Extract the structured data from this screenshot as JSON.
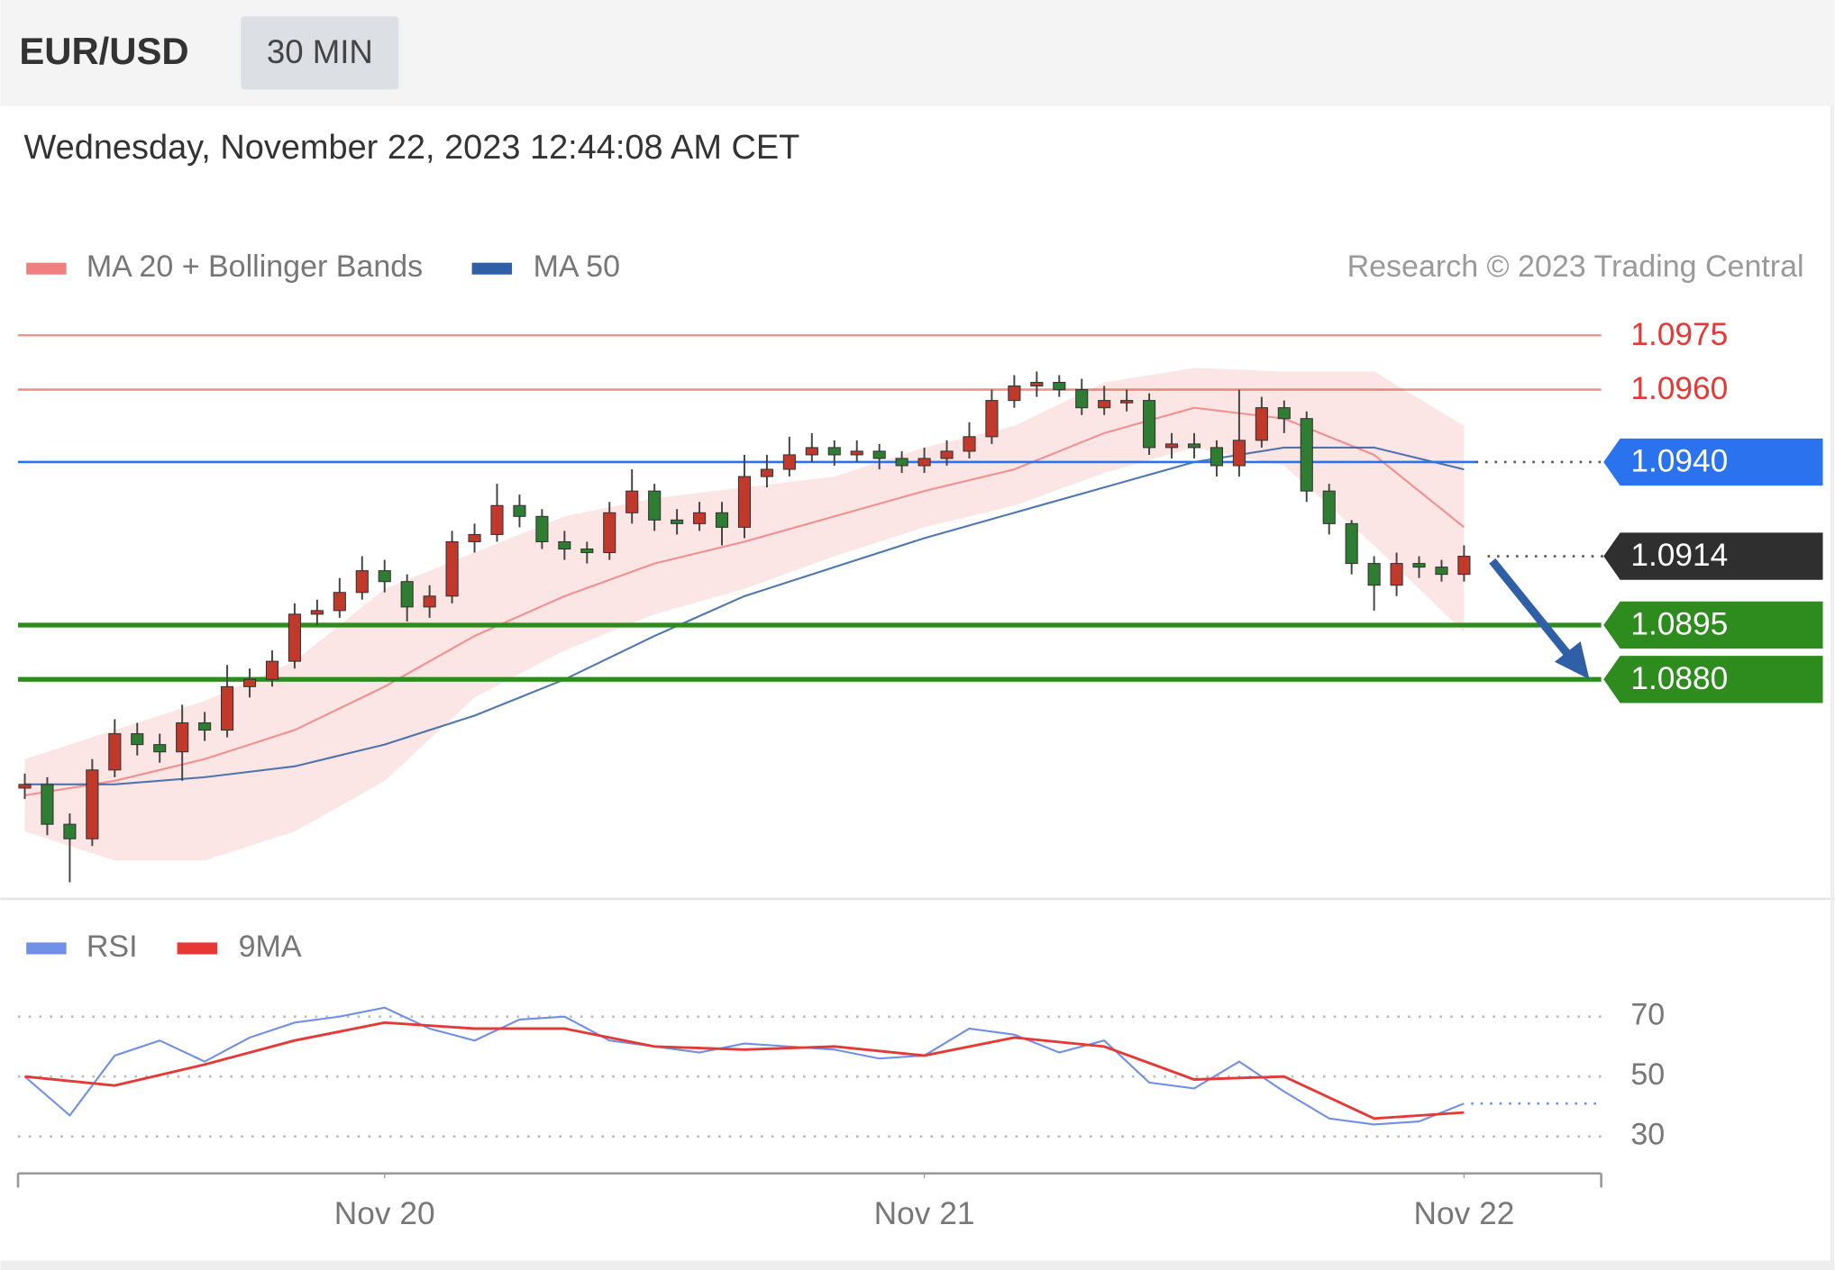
{
  "header": {
    "symbol": "EUR/USD",
    "interval": "30 MIN",
    "timestamp": "Wednesday, November 22, 2023 12:44:08 AM CET"
  },
  "chart_data": [
    {
      "type": "candlestick",
      "source": "Research © 2023 Trading Central",
      "xlim": [
        -0.3,
        70.1
      ],
      "ylim": [
        1.0822,
        1.0983
      ],
      "up_color": "#c0392b",
      "down_color": "#2e7d32",
      "x": [
        0,
        1,
        2,
        3,
        4,
        5,
        6,
        7,
        8,
        9,
        10,
        11,
        12,
        13,
        14,
        15,
        16,
        17,
        18,
        19,
        20,
        21,
        22,
        23,
        24,
        25,
        26,
        27,
        28,
        29,
        30,
        31,
        32,
        33,
        34,
        35,
        36,
        37,
        38,
        39,
        40,
        41,
        42,
        43,
        44,
        45,
        46,
        47,
        48,
        49,
        50,
        51,
        52,
        53,
        54,
        55,
        56,
        57,
        58,
        59,
        60,
        61,
        62,
        63,
        64
      ],
      "open": [
        1.085,
        1.0851,
        1.084,
        1.0836,
        1.0855,
        1.0865,
        1.0862,
        1.086,
        1.0868,
        1.0866,
        1.0878,
        1.088,
        1.0885,
        1.0898,
        1.0899,
        1.0904,
        1.091,
        1.0907,
        1.09,
        1.0903,
        1.0918,
        1.092,
        1.0928,
        1.0925,
        1.0918,
        1.0916,
        1.0915,
        1.0926,
        1.0932,
        1.0924,
        1.0923,
        1.0926,
        1.0922,
        1.0936,
        1.0938,
        1.0942,
        1.0944,
        1.0942,
        1.0943,
        1.0941,
        1.0939,
        1.0941,
        1.0943,
        1.0947,
        1.0957,
        1.0961,
        1.0962,
        1.096,
        1.0955,
        1.0957,
        1.0957,
        1.0944,
        1.0945,
        1.0944,
        1.0939,
        1.0946,
        1.0955,
        1.0952,
        1.0932,
        1.0923,
        1.0912,
        1.0906,
        1.0912,
        1.0911,
        1.0909
      ],
      "high": [
        1.0854,
        1.0853,
        1.0843,
        1.0858,
        1.0869,
        1.0868,
        1.0865,
        1.0873,
        1.0871,
        1.0884,
        1.0883,
        1.0888,
        1.0901,
        1.0902,
        1.0908,
        1.0914,
        1.0913,
        1.0909,
        1.0906,
        1.0921,
        1.0923,
        1.0934,
        1.0931,
        1.0927,
        1.0921,
        1.0918,
        1.0929,
        1.0938,
        1.0934,
        1.0927,
        1.0929,
        1.0929,
        1.0942,
        1.0942,
        1.0947,
        1.0948,
        1.0946,
        1.0946,
        1.0945,
        1.0943,
        1.0944,
        1.0946,
        1.0951,
        1.096,
        1.0964,
        1.0965,
        1.0964,
        1.0963,
        1.0961,
        1.096,
        1.0959,
        1.0948,
        1.0948,
        1.0946,
        1.096,
        1.0958,
        1.0957,
        1.0954,
        1.0934,
        1.0924,
        1.0914,
        1.0915,
        1.0914,
        1.0913,
        1.0917
      ],
      "low": [
        1.0847,
        1.0837,
        1.0824,
        1.0834,
        1.0853,
        1.0859,
        1.0857,
        1.0852,
        1.0863,
        1.0864,
        1.0875,
        1.0878,
        1.0883,
        1.0895,
        1.0897,
        1.0902,
        1.0904,
        1.0896,
        1.0897,
        1.0901,
        1.0915,
        1.0918,
        1.0922,
        1.0916,
        1.0913,
        1.0912,
        1.0913,
        1.0923,
        1.0921,
        1.092,
        1.0921,
        1.0917,
        1.0919,
        1.0933,
        1.0936,
        1.094,
        1.0939,
        1.094,
        1.0938,
        1.0937,
        1.0937,
        1.0939,
        1.0941,
        1.0945,
        1.0955,
        1.0958,
        1.0958,
        1.0953,
        1.0953,
        1.0954,
        1.0942,
        1.0941,
        1.0941,
        1.0936,
        1.0936,
        1.0944,
        1.0948,
        1.0929,
        1.092,
        1.0909,
        1.0899,
        1.0903,
        1.0908,
        1.0907,
        1.0907
      ],
      "close": [
        1.0851,
        1.084,
        1.0836,
        1.0855,
        1.0865,
        1.0862,
        1.086,
        1.0868,
        1.0866,
        1.0878,
        1.088,
        1.0885,
        1.0898,
        1.0899,
        1.0904,
        1.091,
        1.0907,
        1.09,
        1.0903,
        1.0918,
        1.092,
        1.0928,
        1.0925,
        1.0918,
        1.0916,
        1.0915,
        1.0926,
        1.0932,
        1.0924,
        1.0923,
        1.0926,
        1.0922,
        1.0936,
        1.0938,
        1.0942,
        1.0944,
        1.0942,
        1.0943,
        1.0941,
        1.0939,
        1.0941,
        1.0943,
        1.0947,
        1.0957,
        1.0961,
        1.0962,
        1.096,
        1.0955,
        1.0957,
        1.0957,
        1.0944,
        1.0945,
        1.0944,
        1.0939,
        1.0946,
        1.0955,
        1.0952,
        1.0932,
        1.0923,
        1.0912,
        1.0906,
        1.0912,
        1.0911,
        1.0909,
        1.0914
      ],
      "series": [
        {
          "name": "MA 20 + Bollinger Bands",
          "color": "#f08080",
          "band_color": "#fbdada",
          "x": [
            0,
            4,
            8,
            12,
            16,
            20,
            24,
            28,
            32,
            36,
            40,
            44,
            48,
            52,
            56,
            60,
            64
          ],
          "values": [
            1.0848,
            1.0852,
            1.0858,
            1.0866,
            1.0878,
            1.0892,
            1.0903,
            1.0912,
            1.0918,
            1.0925,
            1.0932,
            1.0938,
            1.0948,
            1.0955,
            1.0952,
            1.0942,
            1.0922
          ],
          "upper": [
            1.0858,
            1.0866,
            1.0874,
            1.0885,
            1.0905,
            1.0915,
            1.0925,
            1.093,
            1.0933,
            1.0936,
            1.0944,
            1.095,
            1.0962,
            1.0966,
            1.0965,
            1.0965,
            1.095
          ],
          "lower": [
            1.0838,
            1.083,
            1.083,
            1.0838,
            1.0852,
            1.0875,
            1.0888,
            1.0898,
            1.0905,
            1.0914,
            1.0922,
            1.0928,
            1.0937,
            1.0944,
            1.0939,
            1.0917,
            1.0893
          ]
        },
        {
          "name": "MA 50",
          "color": "#2f5fa7",
          "x": [
            0,
            4,
            8,
            12,
            16,
            20,
            24,
            28,
            32,
            36,
            40,
            44,
            48,
            52,
            56,
            60,
            64
          ],
          "values": [
            1.0851,
            1.0851,
            1.0853,
            1.0856,
            1.0862,
            1.087,
            1.088,
            1.0892,
            1.0903,
            1.0911,
            1.0919,
            1.0926,
            1.0933,
            1.094,
            1.0944,
            1.0944,
            1.0938
          ]
        }
      ],
      "levels": [
        {
          "value": 1.0975,
          "label": "1.0975",
          "color": "#e53935",
          "tag": false
        },
        {
          "value": 1.096,
          "label": "1.0960",
          "color": "#e53935",
          "tag": false
        },
        {
          "value": 1.094,
          "label": "1.0940",
          "color": "#2a72ee",
          "tag": true
        },
        {
          "value": 1.0914,
          "label": "1.0914",
          "color": "#2f2f2f",
          "tag": true
        },
        {
          "value": 1.0895,
          "label": "1.0895",
          "color": "#2e8b1e",
          "tag": true
        },
        {
          "value": 1.088,
          "label": "1.0880",
          "color": "#2e8b1e",
          "tag": true
        }
      ]
    },
    {
      "type": "line",
      "xlim": [
        -0.3,
        70.1
      ],
      "ylim": [
        22,
        79
      ],
      "yticks": [
        30,
        50,
        70
      ],
      "grid": true,
      "xticks": [
        {
          "value": 16,
          "label": "Nov 20"
        },
        {
          "value": 40,
          "label": "Nov 21"
        },
        {
          "value": 64,
          "label": "Nov 22"
        }
      ],
      "series": [
        {
          "name": "RSI",
          "color": "#6f8fe8",
          "x": [
            0,
            2,
            4,
            6,
            8,
            10,
            12,
            14,
            16,
            18,
            20,
            22,
            24,
            26,
            28,
            30,
            32,
            34,
            36,
            38,
            40,
            42,
            44,
            46,
            48,
            50,
            52,
            54,
            56,
            58,
            60,
            62,
            64
          ],
          "values": [
            50,
            37,
            57,
            62,
            55,
            63,
            68,
            70,
            73,
            66,
            62,
            69,
            70,
            62,
            60,
            58,
            61,
            60,
            59,
            56,
            57,
            66,
            64,
            58,
            62,
            48,
            46,
            55,
            45,
            36,
            34,
            35,
            41
          ]
        },
        {
          "name": "9MA",
          "color": "#e53935",
          "x": [
            0,
            4,
            8,
            12,
            16,
            20,
            24,
            28,
            32,
            36,
            40,
            44,
            48,
            52,
            56,
            60,
            64
          ],
          "values": [
            50,
            47,
            54,
            62,
            68,
            66,
            66,
            60,
            59,
            60,
            57,
            63,
            60,
            49,
            50,
            36,
            38
          ]
        }
      ]
    }
  ]
}
